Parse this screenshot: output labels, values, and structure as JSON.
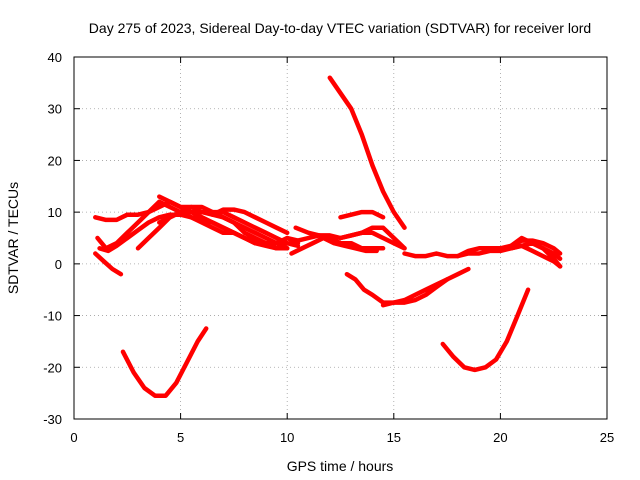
{
  "chart_data": {
    "type": "line",
    "title": "Day 275 of 2023, Sidereal Day-to-day VTEC variation (SDTVAR) for receiver lord",
    "xlabel": "GPS time / hours",
    "ylabel": "SDTVAR / TECUs",
    "xlim": [
      0,
      25
    ],
    "ylim": [
      -30,
      40
    ],
    "xticks": [
      0,
      5,
      10,
      15,
      20,
      25
    ],
    "yticks": [
      -30,
      -20,
      -10,
      0,
      10,
      20,
      30,
      40
    ],
    "grid": true,
    "color": "#ff0000",
    "series": [
      {
        "name": "s1",
        "x": [
          1.1,
          1.5,
          2.0,
          2.5,
          3.0,
          3.5,
          4.0,
          4.5,
          5.0,
          5.5,
          6.0,
          6.5,
          7.0,
          7.5,
          8.0,
          8.5,
          9.0,
          9.5,
          10.0
        ],
        "y": [
          5,
          3,
          4,
          6,
          8,
          10,
          12,
          11,
          10,
          9,
          8,
          7,
          6,
          6,
          5,
          4,
          4,
          3,
          3
        ]
      },
      {
        "name": "s2",
        "x": [
          1.0,
          1.5,
          2.0,
          2.5,
          3.0,
          3.5,
          4.0,
          4.5,
          5.0,
          5.5,
          6.0,
          6.5,
          7.0,
          7.5,
          8.0,
          8.5,
          9.0,
          9.5,
          10.0
        ],
        "y": [
          9,
          8.5,
          8.5,
          9.5,
          9.5,
          10,
          11,
          12,
          11,
          10,
          9,
          8,
          7,
          6,
          5,
          4.5,
          4,
          4,
          4
        ]
      },
      {
        "name": "s3",
        "x": [
          1.2,
          1.6,
          2.0,
          2.5,
          3.0,
          3.5,
          4.0,
          4.5,
          5.0,
          5.5,
          6.0,
          6.5,
          7.0,
          7.5,
          8.0,
          8.5,
          9.0,
          9.5
        ],
        "y": [
          3,
          2.5,
          3.5,
          5,
          6.5,
          8,
          9,
          9.5,
          9.5,
          9,
          8.5,
          8,
          7,
          6,
          5,
          4,
          3.5,
          3
        ]
      },
      {
        "name": "s4",
        "x": [
          3.0,
          3.5,
          4.0,
          4.5,
          5.0,
          5.5,
          6.0,
          6.5,
          7.0,
          7.5,
          8.0,
          8.5,
          9.0,
          9.5,
          10.0,
          10.5
        ],
        "y": [
          3,
          5,
          7,
          9,
          10,
          10,
          10,
          10,
          10,
          9,
          8,
          7,
          6,
          5,
          4,
          3.5
        ]
      },
      {
        "name": "s5",
        "x": [
          4.0,
          4.5,
          5.0,
          5.5,
          6.0,
          6.5,
          7.0,
          7.5,
          8.0,
          8.5,
          9.0,
          9.5,
          10.0
        ],
        "y": [
          13,
          12,
          11,
          11,
          10,
          9.5,
          9,
          8,
          7,
          6,
          5,
          4,
          3
        ]
      },
      {
        "name": "s6",
        "x": [
          4.0,
          4.5,
          5.0,
          5.5,
          6.0,
          6.5,
          7.0,
          7.5,
          8.0,
          8.5,
          9.0,
          9.5,
          10.0,
          10.5
        ],
        "y": [
          8,
          9,
          10,
          11,
          11,
          10,
          9,
          8,
          6,
          5,
          4,
          4,
          5,
          4
        ]
      },
      {
        "name": "s7",
        "x": [
          6.5,
          7.0,
          7.5,
          8.0,
          8.5,
          9.0,
          9.5,
          10.0
        ],
        "y": [
          9.5,
          10.5,
          10.5,
          10,
          9,
          8,
          7,
          6
        ]
      },
      {
        "name": "s8",
        "x": [
          1.0,
          1.4,
          1.8,
          2.2
        ],
        "y": [
          2,
          0.5,
          -1,
          -2
        ]
      },
      {
        "name": "s9",
        "x": [
          10.0,
          10.5,
          11.0,
          11.5,
          12.0,
          12.5,
          13.0,
          13.5,
          14.0,
          14.5
        ],
        "y": [
          5,
          4.5,
          5,
          5.5,
          5,
          4,
          4,
          3,
          3,
          3
        ]
      },
      {
        "name": "s10",
        "x": [
          10.2,
          10.7,
          11.2,
          11.7,
          12.2,
          12.7,
          13.2,
          13.7,
          14.2
        ],
        "y": [
          2,
          3,
          4,
          5,
          4,
          3.5,
          3,
          2.5,
          2.5
        ]
      },
      {
        "name": "s11",
        "x": [
          10.4,
          11.0,
          11.5,
          12.0,
          12.5,
          13.0,
          13.5,
          14.0,
          14.5,
          15.0,
          15.5
        ],
        "y": [
          7,
          6,
          5.5,
          5.5,
          5,
          5.5,
          6,
          7,
          7,
          5,
          3
        ]
      },
      {
        "name": "s12",
        "x": [
          12.5,
          13.0,
          13.5,
          14.0,
          14.5,
          15.0,
          15.5
        ],
        "y": [
          5,
          5.5,
          6,
          6,
          5,
          4,
          3
        ]
      },
      {
        "name": "s13",
        "x": [
          12.5,
          13.0,
          13.5,
          14.0,
          14.5
        ],
        "y": [
          9,
          9.5,
          10,
          10,
          9
        ]
      },
      {
        "name": "s14",
        "x": [
          12.0,
          12.5,
          13.0,
          13.5,
          14.0,
          14.5,
          15.0,
          15.5
        ],
        "y": [
          36,
          33,
          30,
          25,
          19,
          14,
          10,
          7
        ]
      },
      {
        "name": "s15",
        "x": [
          12.8,
          13.2,
          13.6,
          14.0,
          14.5,
          15.0,
          15.5,
          16.0,
          16.5,
          17.0,
          17.5
        ],
        "y": [
          -2,
          -3,
          -5,
          -6,
          -7.5,
          -7.5,
          -7.5,
          -7,
          -6,
          -4.5,
          -3
        ]
      },
      {
        "name": "s16",
        "x": [
          14.5,
          15.0,
          15.5,
          16.0,
          16.5,
          17.0,
          17.5,
          18.0,
          18.5
        ],
        "y": [
          -8,
          -7.5,
          -7,
          -6,
          -5,
          -4,
          -3,
          -2,
          -1
        ]
      },
      {
        "name": "s17",
        "x": [
          15.5,
          16.0,
          16.5,
          17.0,
          17.5,
          18.0,
          18.5,
          19.0,
          19.5,
          20.0,
          20.5,
          21.0,
          21.5,
          22.0,
          22.5,
          22.8
        ],
        "y": [
          2,
          1.5,
          1.5,
          2,
          1.5,
          1.5,
          2,
          2,
          2.5,
          2.5,
          3,
          3.5,
          4,
          3,
          1,
          -0.5
        ]
      },
      {
        "name": "s18",
        "x": [
          18.0,
          18.5,
          19.0,
          19.5,
          20.0,
          20.5,
          21.0,
          21.5,
          22.0,
          22.5,
          22.8
        ],
        "y": [
          1.5,
          2.5,
          3,
          3,
          3,
          3.5,
          5,
          4,
          3,
          2,
          1
        ]
      },
      {
        "name": "s19",
        "x": [
          20.5,
          21.0,
          21.5,
          22.0,
          22.5,
          22.8
        ],
        "y": [
          3.5,
          4.5,
          4.5,
          4,
          3,
          2
        ]
      },
      {
        "name": "s20",
        "x": [
          20.5,
          21.0,
          21.5,
          22.0,
          22.5,
          22.8
        ],
        "y": [
          3,
          3.5,
          2.5,
          1.5,
          0.5,
          -0.5
        ]
      },
      {
        "name": "s21",
        "x": [
          2.3,
          2.8,
          3.3,
          3.8,
          4.3,
          4.8,
          5.3,
          5.8,
          6.2
        ],
        "y": [
          -17,
          -21,
          -24,
          -25.5,
          -25.5,
          -23,
          -19,
          -15,
          -12.5
        ]
      },
      {
        "name": "s22",
        "x": [
          17.3,
          17.8,
          18.3,
          18.8,
          19.3,
          19.8,
          20.3,
          20.8,
          21.3
        ],
        "y": [
          -15.5,
          -18,
          -20,
          -20.5,
          -20,
          -18.5,
          -15,
          -10,
          -5
        ]
      }
    ]
  }
}
